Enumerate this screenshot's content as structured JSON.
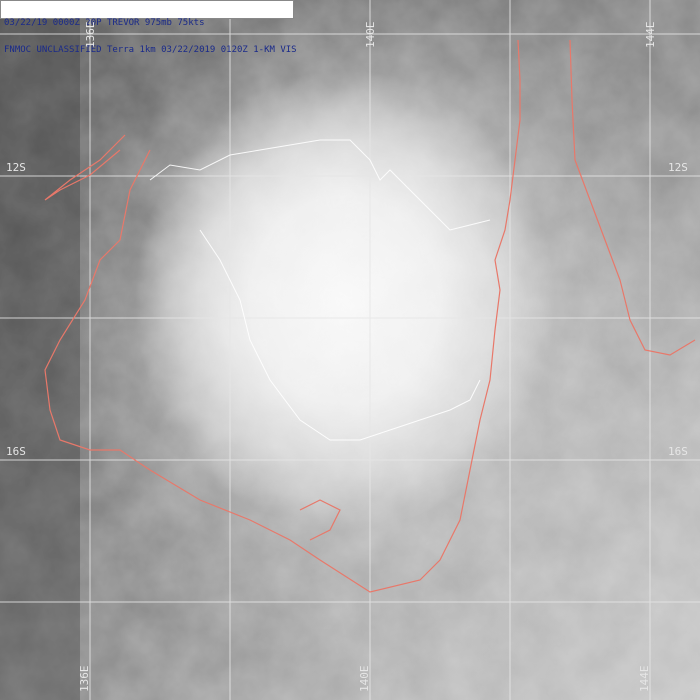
{
  "header": {
    "line1": "03/22/19 0000Z 20P TREVOR 975mb 75kts",
    "line2": "FNMOC UNCLASSIFIED Terra 1km 03/22/2019 0120Z 1-KM VIS"
  },
  "grid": {
    "lon_labels": [
      "136E",
      "140E",
      "144E"
    ],
    "lat_labels": [
      "12S",
      "16S"
    ]
  },
  "colors": {
    "coastline": "#e8786a",
    "grid": "#e0e0e0"
  }
}
